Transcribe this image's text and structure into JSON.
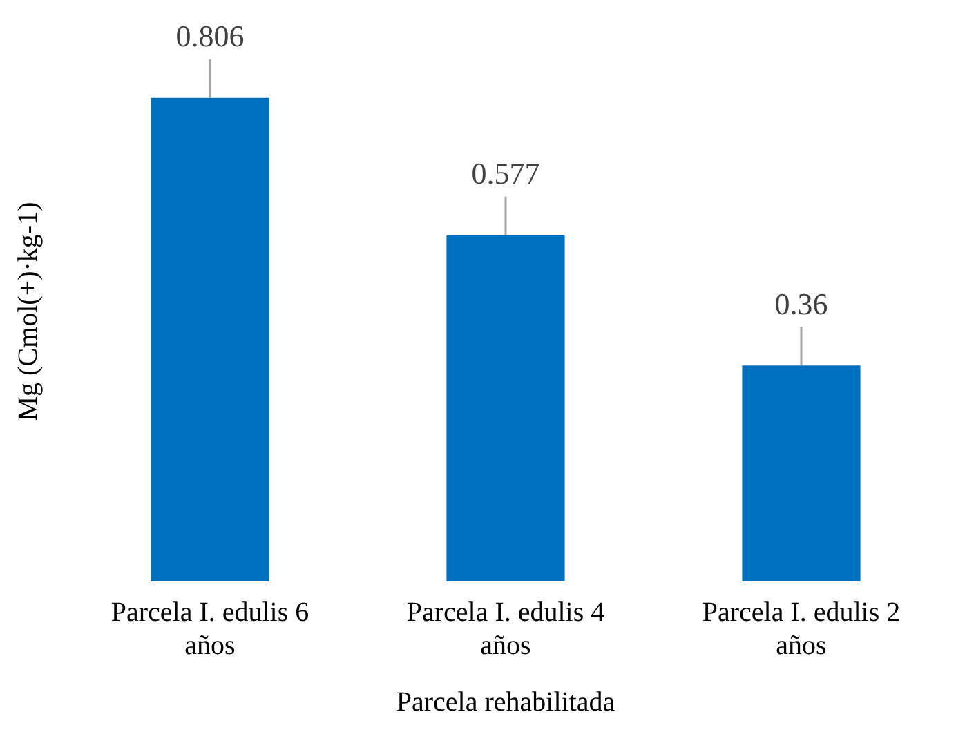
{
  "chart_data": {
    "type": "bar",
    "xlabel": "Parcela rehabilitada",
    "ylabel": "Mg (Cmol(+)·kg-1)",
    "categories": [
      "Parcela I. edulis 6 años",
      "Parcela I. edulis 4 años",
      "Parcela I. edulis 2 años"
    ],
    "values": [
      0.806,
      0.577,
      0.36
    ],
    "color": "#0070c0",
    "data_labels": true,
    "grid": false,
    "legend": false
  }
}
